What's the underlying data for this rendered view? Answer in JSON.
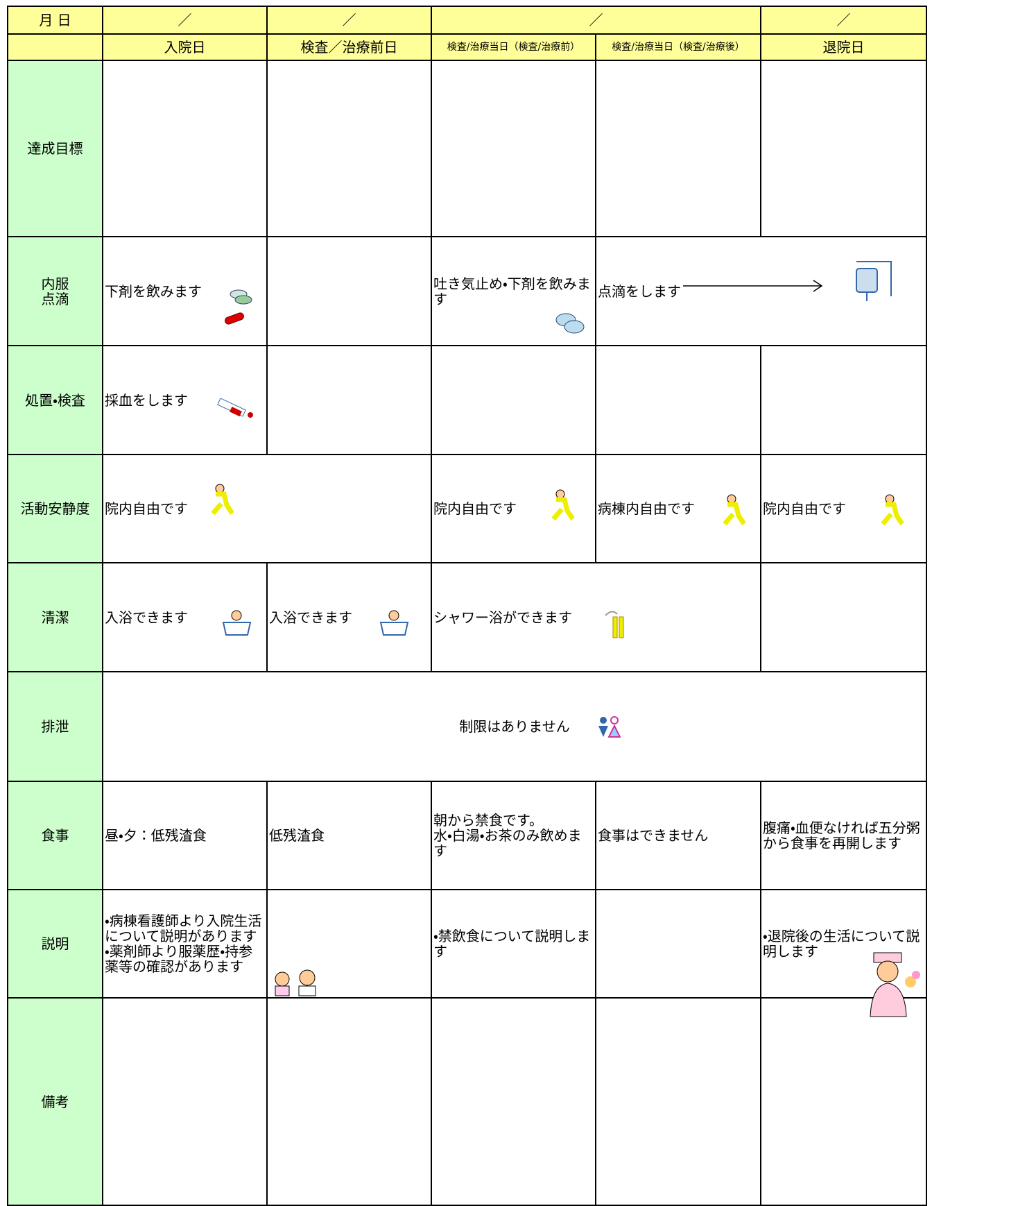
{
  "header": {
    "date_label": "月 日",
    "dates": [
      "／",
      "／",
      "／",
      "／"
    ],
    "columns": [
      "入院日",
      "検査／治療前日",
      "検査/治療当日（検査/治療前）",
      "検査/治療当日（検査/治療後）",
      "退院日"
    ]
  },
  "rows": [
    {
      "label": "達成目標"
    },
    {
      "label": "内服\n点滴",
      "cells": [
        "下剤を飲みます",
        "吐き気止め・下剤を飲みます",
        "点滴をします"
      ]
    },
    {
      "label": "処置・検査",
      "cells": [
        "採血をします"
      ]
    },
    {
      "label": "活動安静度",
      "cells": [
        "院内自由です",
        "院内自由です",
        "病棟内自由です",
        "院内自由です"
      ]
    },
    {
      "label": "清潔",
      "cells": [
        "入浴できます",
        "入浴できます",
        "シャワー浴ができます"
      ]
    },
    {
      "label": "排泄",
      "cells": [
        "制限はありません"
      ]
    },
    {
      "label": "食事",
      "cells": [
        "昼・夕：低残渣食",
        "低残渣食",
        "朝から禁食です。\n水・白湯・お茶のみ飲めます",
        "食事はできません",
        "腹痛・血便なければ五分粥から食事を再開します"
      ]
    },
    {
      "label": "説明",
      "cells": [
        "・病棟看護師より入院生活について説明があります\n・薬剤師より服薬歴・持参薬等の確認があります",
        "・禁飲食について説明します",
        "・退院後の生活について説明します"
      ]
    },
    {
      "label": "備考"
    }
  ]
}
